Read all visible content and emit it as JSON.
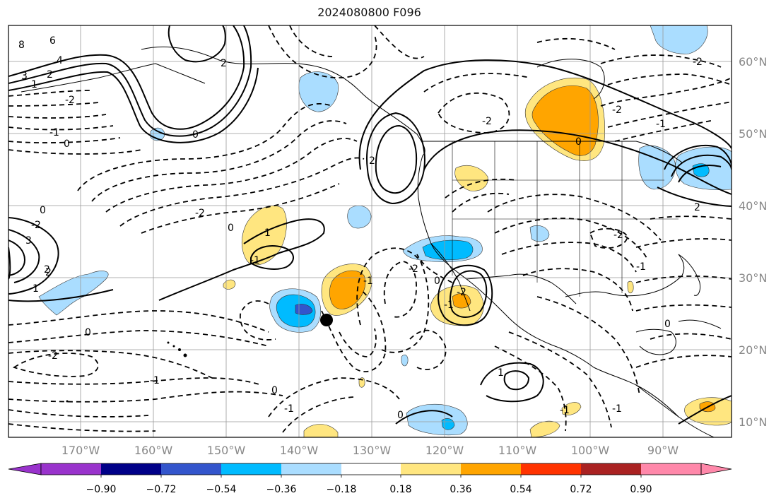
{
  "title": "2024080800 F096",
  "lon_labels": [
    "170°W",
    "160°W",
    "150°W",
    "140°W",
    "130°W",
    "120°W",
    "110°W",
    "100°W",
    "90°W"
  ],
  "lat_labels": [
    "60°N",
    "50°N",
    "40°N",
    "30°N",
    "20°N",
    "10°N"
  ],
  "colorbar": {
    "tick_labels": [
      "−0.90",
      "−0.72",
      "−0.54",
      "−0.36",
      "−0.18",
      "0.18",
      "0.36",
      "0.54",
      "0.72",
      "0.90"
    ],
    "colors": [
      "#9933cc",
      "#000088",
      "#3355cc",
      "#00bbff",
      "#aaddff",
      "#ffffff",
      "#ffe680",
      "#ffa500",
      "#ff3300",
      "#aa2222",
      "#ff88aa"
    ]
  },
  "colors": {
    "light_blue": "#aaddff",
    "blue": "#00bbff",
    "dark_blue": "#3355cc",
    "light_yellow": "#ffe680",
    "orange": "#ffa500"
  },
  "contour_labels": [
    "8",
    "6",
    "4",
    "3",
    "2",
    "1",
    "0",
    "-2",
    "-1",
    "2",
    "0",
    "-2",
    "1",
    "-1",
    "0",
    "-1",
    "2",
    "0",
    "-2",
    "0",
    "-2",
    "-1",
    "2",
    "0",
    "-1",
    "0",
    "3",
    "2",
    "1",
    "-2",
    "-1",
    "0",
    "1",
    "-2",
    "-1",
    "0",
    "-2",
    "-2",
    "-1",
    "2",
    "-2",
    "-2",
    "0",
    "-1",
    "-1"
  ]
}
